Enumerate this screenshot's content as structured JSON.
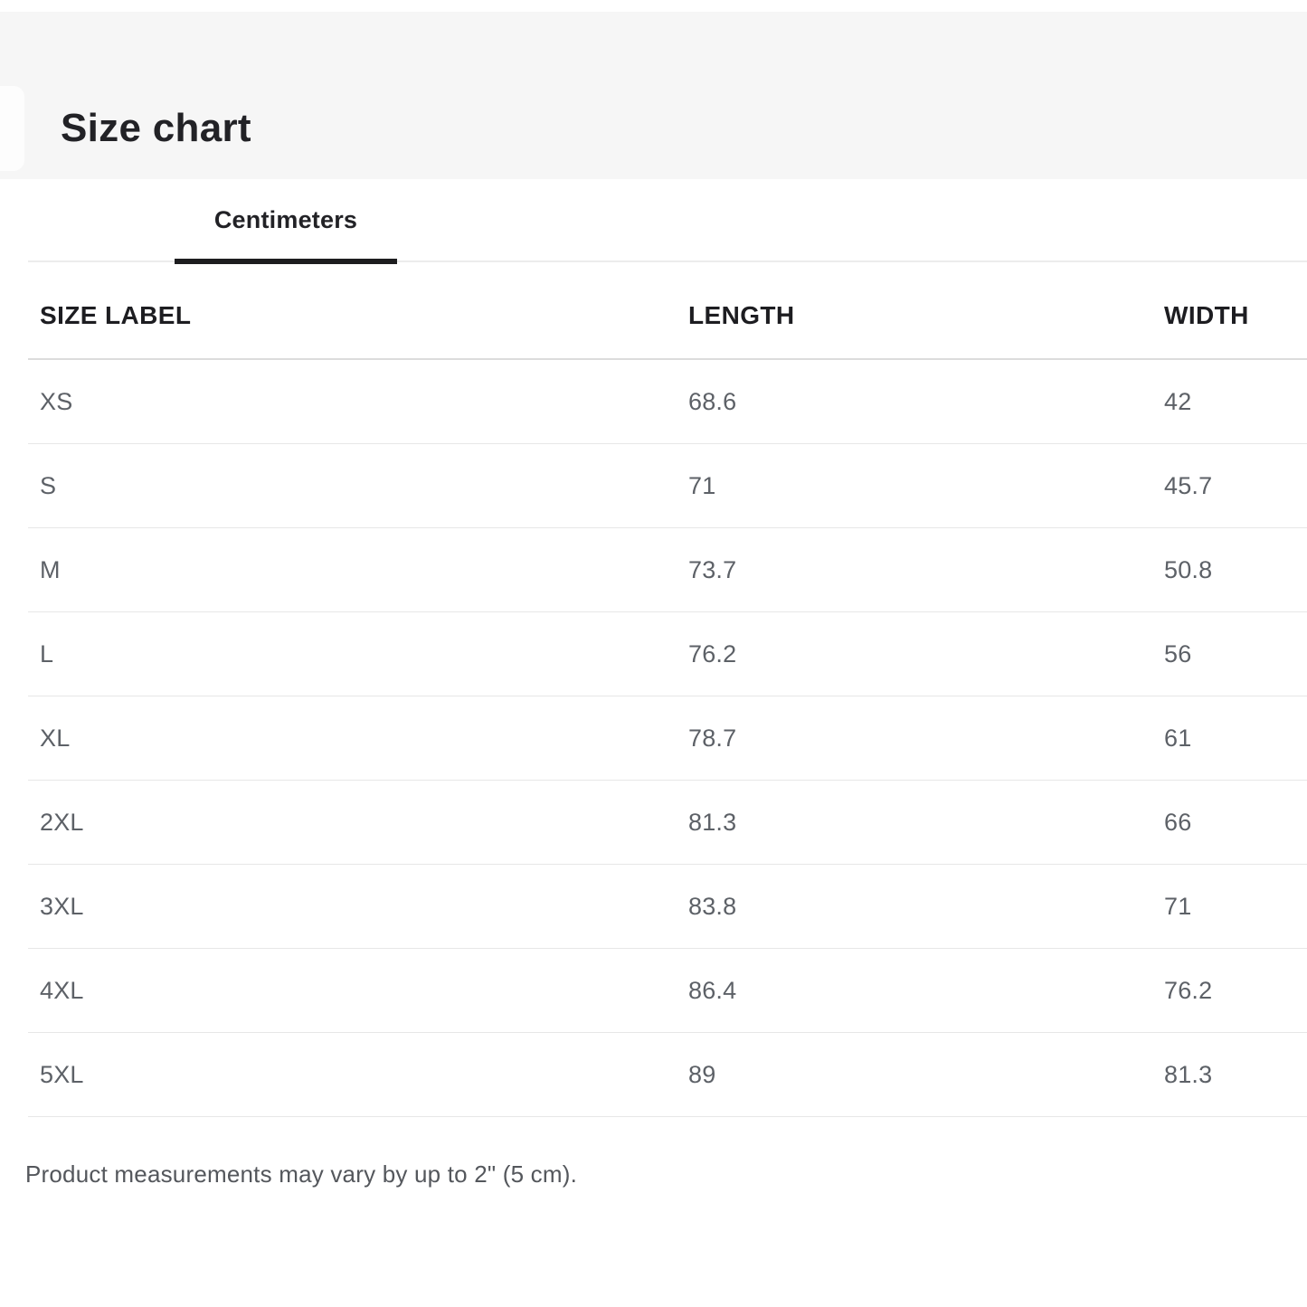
{
  "header": {
    "title": "Size chart"
  },
  "tabs": [
    {
      "label": "Centimeters",
      "active": true
    }
  ],
  "table": {
    "columns": [
      "SIZE LABEL",
      "LENGTH",
      "WIDTH"
    ],
    "rows": [
      {
        "size": "XS",
        "length": "68.6",
        "width": "42"
      },
      {
        "size": "S",
        "length": "71",
        "width": "45.7"
      },
      {
        "size": "M",
        "length": "73.7",
        "width": "50.8"
      },
      {
        "size": "L",
        "length": "76.2",
        "width": "56"
      },
      {
        "size": "XL",
        "length": "78.7",
        "width": "61"
      },
      {
        "size": "2XL",
        "length": "81.3",
        "width": "66"
      },
      {
        "size": "3XL",
        "length": "83.8",
        "width": "71"
      },
      {
        "size": "4XL",
        "length": "86.4",
        "width": "76.2"
      },
      {
        "size": "5XL",
        "length": "89",
        "width": "81.3"
      }
    ]
  },
  "footnote": "Product measurements may vary by up to 2\" (5 cm).",
  "colors": {
    "band_background": "#f6f6f6",
    "title_text": "#222226",
    "active_tab_underline": "#1d1d1f",
    "header_text": "#1d1d21",
    "cell_text": "#5d6167",
    "row_divider": "#e7e7e7",
    "header_divider": "#dcdcdc",
    "tabbar_rule": "#ececec"
  }
}
